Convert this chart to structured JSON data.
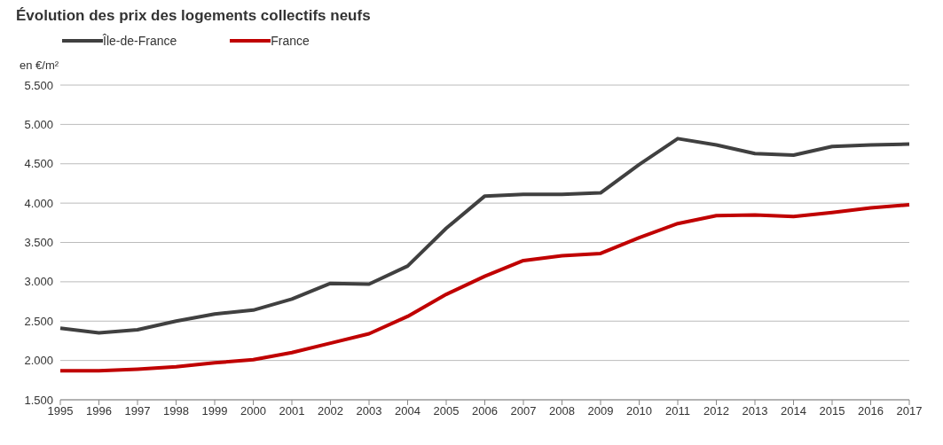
{
  "chart_data": {
    "type": "line",
    "title": "Évolution des prix des logements collectifs neufs",
    "ylabel": "en €/m²",
    "categories": [
      "1995",
      "1996",
      "1997",
      "1998",
      "1999",
      "2000",
      "2001",
      "2002",
      "2003",
      "2004",
      "2005",
      "2006",
      "2007",
      "2008",
      "2009",
      "2010",
      "2011",
      "2012",
      "2013",
      "2014",
      "2015",
      "2016",
      "2017"
    ],
    "series": [
      {
        "name": "Île-de-France",
        "color": "#404040",
        "values": [
          2410,
          2350,
          2390,
          2500,
          2590,
          2640,
          2780,
          2980,
          2970,
          3200,
          3680,
          4090,
          4110,
          4110,
          4130,
          4490,
          4820,
          4740,
          4630,
          4610,
          4720,
          4740,
          4750
        ]
      },
      {
        "name": "France",
        "color": "#c00000",
        "values": [
          1870,
          1870,
          1890,
          1920,
          1970,
          2010,
          2100,
          2220,
          2340,
          2560,
          2840,
          3070,
          3270,
          3330,
          3360,
          3560,
          3740,
          3840,
          3850,
          3830,
          3880,
          3940,
          3980
        ]
      }
    ],
    "ylim": [
      1500,
      5500
    ],
    "yticks": [
      {
        "value": 1500,
        "label": "1.500"
      },
      {
        "value": 2000,
        "label": "2.000"
      },
      {
        "value": 2500,
        "label": "2.500"
      },
      {
        "value": 3000,
        "label": "3.000"
      },
      {
        "value": 3500,
        "label": "3.500"
      },
      {
        "value": 4000,
        "label": "4.000"
      },
      {
        "value": 4500,
        "label": "4.500"
      },
      {
        "value": 5000,
        "label": "5.000"
      },
      {
        "value": 5500,
        "label": "5.500"
      }
    ],
    "grid": "y",
    "legend": "top left",
    "marker": "none",
    "line_style": "solid"
  }
}
